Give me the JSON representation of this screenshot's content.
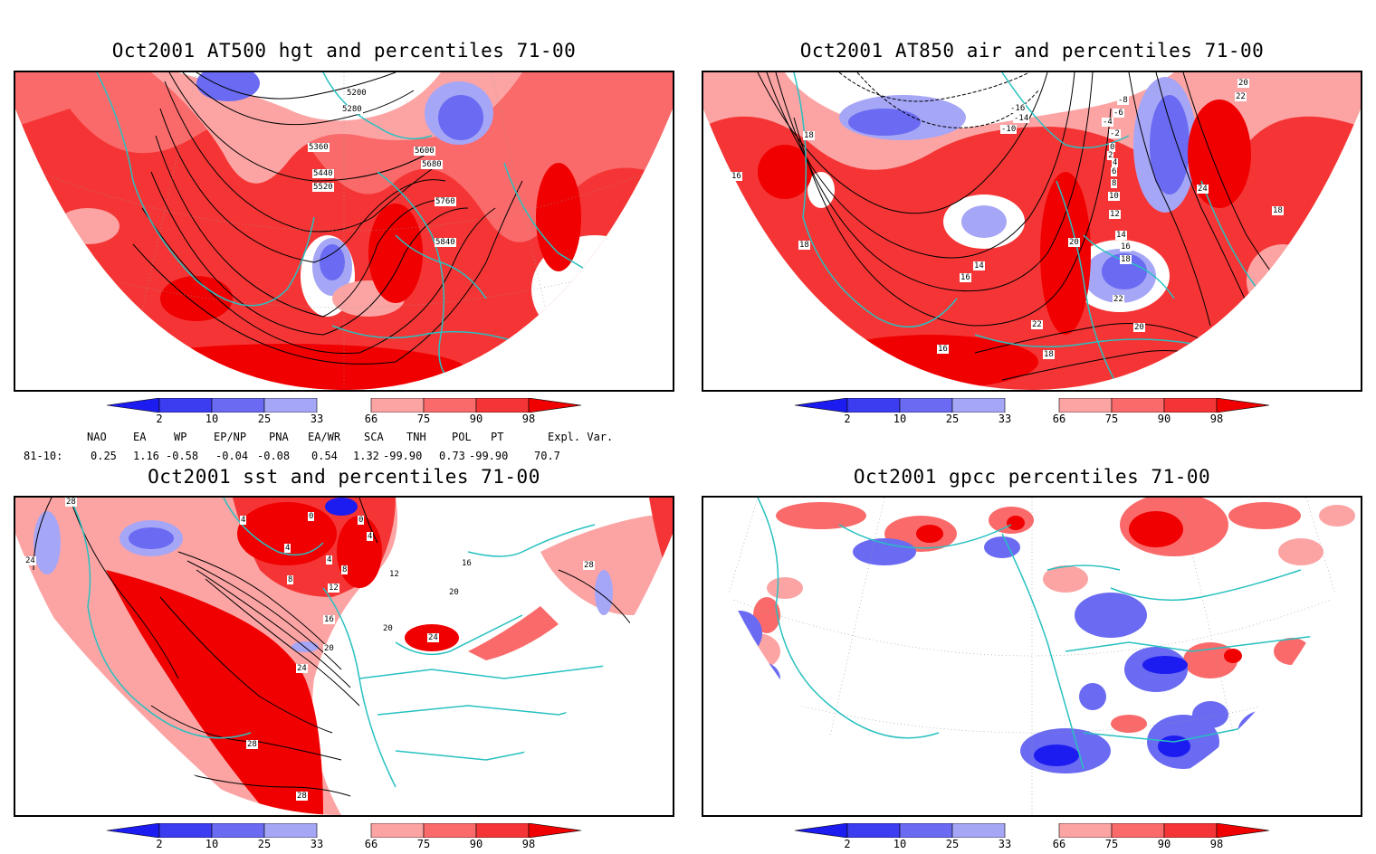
{
  "panels": [
    {
      "id": "hgt",
      "title": "Oct2001 AT500 hgt and percentiles 71-00",
      "contour_labels": [
        "5200",
        "5280",
        "5360",
        "5440",
        "5520",
        "5600",
        "5680",
        "5760",
        "5840"
      ]
    },
    {
      "id": "air",
      "title": "Oct2001 AT850 air and percentiles 71-00",
      "contour_labels": [
        "-16",
        "-14",
        "-10",
        "-8",
        "-6",
        "-4",
        "-2",
        "0",
        "2",
        "4",
        "6",
        "8",
        "10",
        "12",
        "14",
        "16",
        "18",
        "20",
        "22",
        "24",
        "18",
        "16",
        "18",
        "14",
        "16",
        "20",
        "22",
        "18",
        "16",
        "20",
        "22",
        "18"
      ]
    },
    {
      "id": "sst",
      "title": "Oct2001 sst and percentiles 71-00",
      "contour_labels": [
        "28",
        "24",
        "0",
        "4",
        "4",
        "4",
        "8",
        "8",
        "12",
        "12",
        "16",
        "16",
        "20",
        "20",
        "20",
        "24",
        "24",
        "28",
        "28",
        "28",
        "0",
        "4"
      ]
    },
    {
      "id": "gpcc",
      "title": "Oct2001 gpcc percentiles 71-00",
      "contour_labels": []
    }
  ],
  "colorbar": {
    "ticks": [
      "2",
      "10",
      "25",
      "33",
      "66",
      "75",
      "90",
      "98"
    ],
    "colors": {
      "lt2": "#1c1cf0",
      "b2_10": "#3c3cf0",
      "b10_25": "#6a6af2",
      "b25_33": "#a6a6f7",
      "b66_75": "#fca4a4",
      "b75_90": "#fa6a6a",
      "b90_98": "#f53535",
      "gt98": "#f00000"
    }
  },
  "indices": {
    "headers": [
      "NAO",
      "EA",
      "WP",
      "EP/NP",
      "PNA",
      "EA/WR",
      "SCA",
      "TNH",
      "POL",
      "PT",
      "Expl. Var."
    ],
    "row_label": "81-10:",
    "values": [
      "0.25",
      "1.16",
      "-0.58",
      "-0.04",
      "-0.08",
      "0.54",
      "1.32",
      "-99.90",
      "0.73",
      "-99.90",
      "70.7"
    ]
  },
  "colors": {
    "coast": "#28c0c0",
    "red_strong": "#f00000",
    "red_mid": "#f53535",
    "red_light": "#fa6a6a",
    "pink": "#fca4a4",
    "blue_light": "#a6a6f7",
    "blue_mid": "#6a6af2",
    "blue_strong": "#3c3cf0"
  }
}
